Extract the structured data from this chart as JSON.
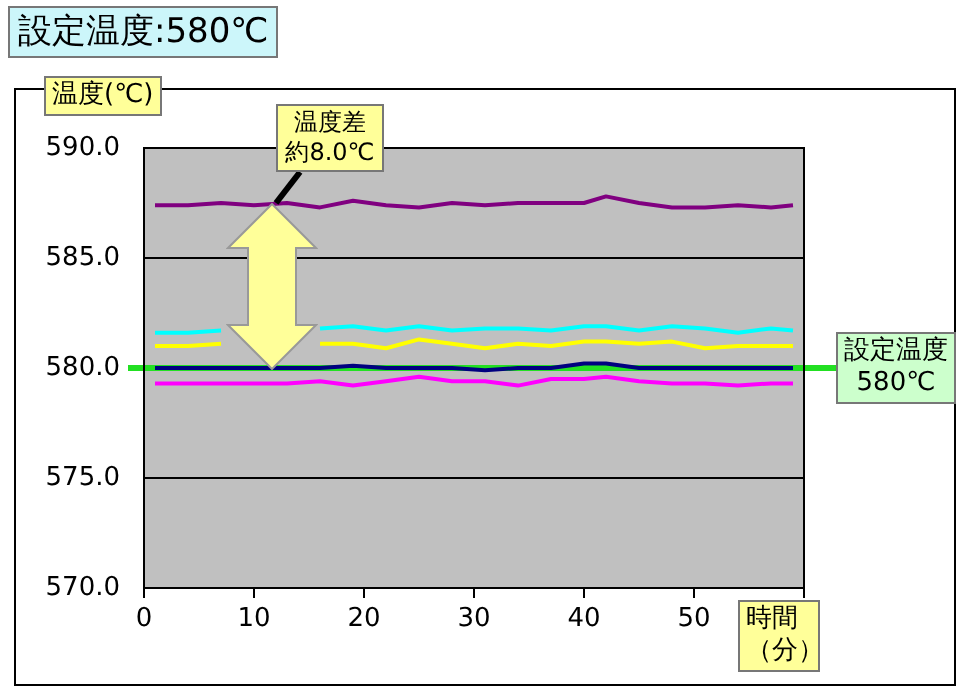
{
  "chart_data": {
    "type": "line",
    "title": "設定温度:580℃",
    "xlabel": "時間（分）",
    "ylabel": "温度(℃)",
    "x": [
      1,
      4,
      7,
      10,
      13,
      16,
      19,
      22,
      25,
      28,
      31,
      34,
      37,
      40,
      42,
      45,
      48,
      51,
      54,
      57,
      59
    ],
    "series": [
      {
        "color": "#800080",
        "values": [
          587.4,
          587.4,
          587.5,
          587.4,
          587.5,
          587.3,
          587.6,
          587.4,
          587.3,
          587.5,
          587.4,
          587.5,
          587.5,
          587.5,
          587.8,
          587.5,
          587.3,
          587.3,
          587.4,
          587.3,
          587.4
        ]
      },
      {
        "color": "#00ffff",
        "values": [
          581.6,
          581.6,
          581.7,
          null,
          null,
          581.8,
          581.9,
          581.7,
          581.9,
          581.7,
          581.8,
          581.8,
          581.7,
          581.9,
          581.9,
          581.7,
          581.9,
          581.8,
          581.6,
          581.8,
          581.7
        ]
      },
      {
        "color": "#ffff00",
        "values": [
          581.0,
          581.0,
          581.1,
          null,
          null,
          581.1,
          581.1,
          580.9,
          581.3,
          581.1,
          580.9,
          581.1,
          581.0,
          581.2,
          581.2,
          581.1,
          581.2,
          580.9,
          581.0,
          581.0,
          581.0
        ]
      },
      {
        "color": "#000080",
        "values": [
          580.0,
          580.0,
          580.0,
          580.0,
          580.0,
          580.0,
          580.1,
          580.0,
          580.0,
          580.0,
          579.9,
          580.0,
          580.0,
          580.2,
          580.2,
          580.0,
          580.0,
          580.0,
          580.0,
          580.0,
          580.0
        ]
      },
      {
        "color": "#ff00ff",
        "values": [
          579.3,
          579.3,
          579.3,
          579.3,
          579.3,
          579.4,
          579.2,
          579.4,
          579.6,
          579.4,
          579.4,
          579.2,
          579.5,
          579.5,
          579.6,
          579.4,
          579.3,
          579.3,
          579.2,
          579.3,
          579.3
        ]
      }
    ],
    "xlim": [
      0,
      60
    ],
    "xticks": [
      0,
      10,
      20,
      30,
      40,
      50,
      {
        "value": 60,
        "label": null
      }
    ],
    "ylim": [
      570,
      590
    ],
    "yticks": [
      {
        "value": 570,
        "label": "570.0"
      },
      {
        "value": 575,
        "label": "575.0"
      },
      {
        "value": 580,
        "label": "580.0"
      },
      {
        "value": 585,
        "label": "585.0"
      },
      {
        "value": 590,
        "label": "590.0"
      }
    ],
    "grid": "y",
    "legend": false,
    "marker": "none",
    "line_style": "solid",
    "ref_lines": [
      {
        "axis": "y",
        "value": 580,
        "label": "設定温度\n580℃",
        "color": "#22e022"
      }
    ],
    "annotations": [
      {
        "text": "温度差約8.0℃",
        "x": 12,
        "y": 587.5
      }
    ]
  }
}
